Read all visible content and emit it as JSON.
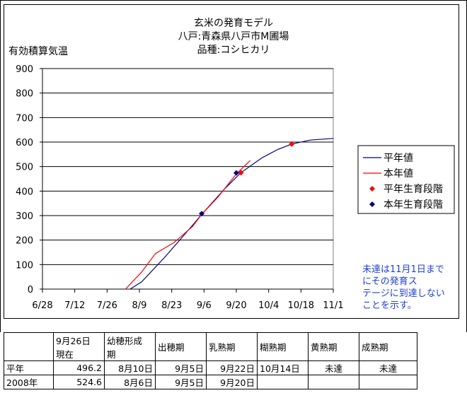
{
  "chart_data": {
    "type": "line",
    "title": [
      "玄米の発育モデル",
      "八戸:青森県八戸市M圃場",
      "品種:コシヒカリ"
    ],
    "ylabel": "有効積算気温",
    "xlabel": "",
    "ylim": [
      0,
      900
    ],
    "yticks": [
      "0",
      "100",
      "200",
      "300",
      "400",
      "500",
      "600",
      "700",
      "800",
      "900"
    ],
    "xticks": [
      "6/28",
      "7/12",
      "7/26",
      "8/9",
      "8/23",
      "9/6",
      "9/20",
      "10/4",
      "10/18",
      "11/1"
    ],
    "xrange": [
      "6/28",
      "11/1"
    ],
    "grid": true,
    "legend_position": "right",
    "series": [
      {
        "name": "平年値",
        "kind": "line",
        "color": "#000080",
        "points": [
          [
            "8/5",
            0
          ],
          [
            "8/10",
            30
          ],
          [
            "8/20",
            130
          ],
          [
            "9/1",
            260
          ],
          [
            "9/5",
            305
          ],
          [
            "9/15",
            410
          ],
          [
            "9/22",
            475
          ],
          [
            "10/1",
            535
          ],
          [
            "10/8",
            570
          ],
          [
            "10/14",
            592
          ],
          [
            "10/22",
            608
          ],
          [
            "11/1",
            615
          ]
        ]
      },
      {
        "name": "本年値",
        "kind": "line",
        "color": "#ff0000",
        "points": [
          [
            "8/3",
            0
          ],
          [
            "8/10",
            70
          ],
          [
            "8/16",
            145
          ],
          [
            "8/24",
            190
          ],
          [
            "9/1",
            255
          ],
          [
            "9/5",
            305
          ],
          [
            "9/12",
            375
          ],
          [
            "9/20",
            470
          ],
          [
            "9/26",
            524.6
          ]
        ]
      },
      {
        "name": "平年生育段階",
        "kind": "marker",
        "color": "#ff0000",
        "points": [
          [
            "9/22",
            475
          ],
          [
            "10/14",
            592
          ]
        ]
      },
      {
        "name": "本年生育段階",
        "kind": "marker",
        "color": "#000080",
        "points": [
          [
            "9/5",
            308
          ],
          [
            "9/20",
            474
          ]
        ]
      }
    ]
  },
  "note": "未達は11月1日まで\nにその発育ス\nテージに到達しない\nことを示す。",
  "table": {
    "headers": [
      "",
      "9月26日\n現在",
      "幼穂形成\n期",
      "出穂期",
      "乳熟期",
      "糊熟期",
      "黄熟期",
      "成熟期"
    ],
    "rows": [
      [
        "平年",
        "496.2",
        "8月10日",
        "9月5日",
        "9月22日",
        "10月14日",
        "未達",
        "未達"
      ],
      [
        "2008年",
        "524.6",
        "8月6日",
        "9月5日",
        "9月20日",
        "",
        "",
        ""
      ]
    ]
  },
  "colors": {
    "normal_line": "#000080",
    "current_line": "#ff0000",
    "note": "#1f3fd6",
    "plot_bg": "#ffffff"
  }
}
